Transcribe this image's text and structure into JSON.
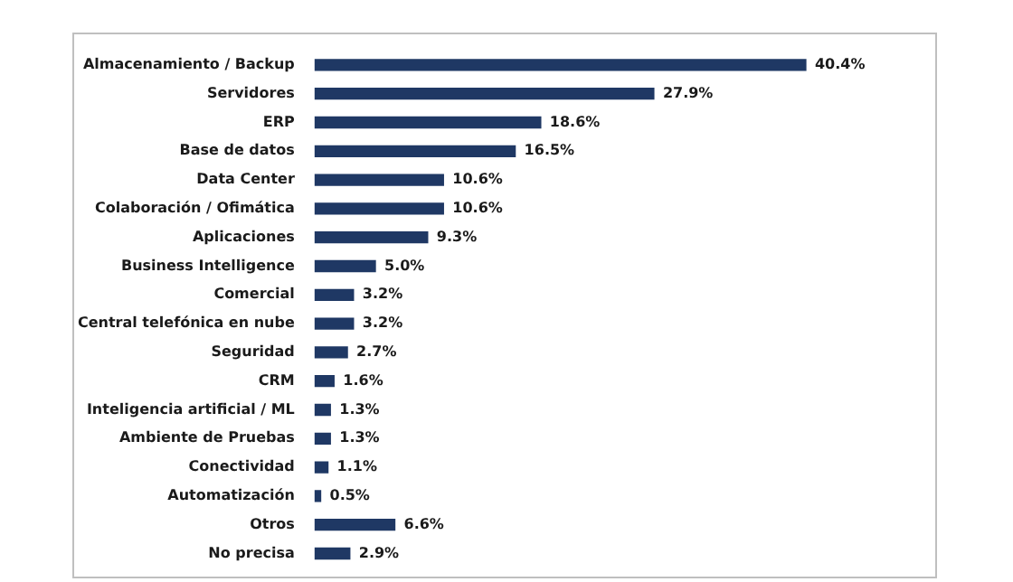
{
  "chart_data": {
    "type": "bar",
    "orientation": "horizontal",
    "color": "#1f3864",
    "categories": [
      "Almacenamiento / Backup",
      "Servidores",
      "ERP",
      "Base de datos",
      "Data Center",
      "Colaboración / Ofimática",
      "Aplicaciones",
      "Business Intelligence",
      "Comercial",
      "Central telefónica en nube",
      "Seguridad",
      "CRM",
      "Inteligencia artificial / ML",
      "Ambiente de Pruebas",
      "Conectividad",
      "Automatización",
      "Otros",
      "No precisa"
    ],
    "values": [
      40.4,
      27.9,
      18.6,
      16.5,
      10.6,
      10.6,
      9.3,
      5.0,
      3.2,
      3.2,
      2.7,
      1.6,
      1.3,
      1.3,
      1.1,
      0.5,
      6.6,
      2.9
    ],
    "value_labels": [
      "40.4%",
      "27.9%",
      "18.6%",
      "16.5%",
      "10.6%",
      "10.6%",
      "9.3%",
      "5.0%",
      "3.2%",
      "3.2%",
      "2.7%",
      "1.6%",
      "1.3%",
      "1.3%",
      "1.1%",
      "0.5%",
      "6.6%",
      "2.9%"
    ],
    "legend": false
  }
}
